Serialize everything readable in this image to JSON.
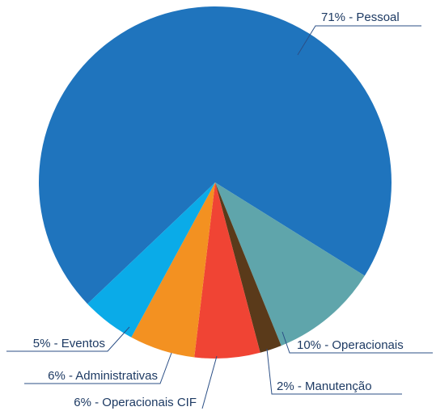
{
  "chart_data": {
    "type": "pie",
    "values": [
      71,
      10,
      2,
      6,
      6,
      5
    ],
    "value_labels": [
      "71% - Pessoal",
      "10% - Operacionais",
      "2% - Manutenção",
      "6% - Operacionais CIF",
      "6% - Administrativas",
      "5% - Eventos"
    ],
    "colors": [
      "#1f74bd",
      "#5fa5ab",
      "#5a3a1a",
      "#f04434",
      "#f39121",
      "#0aabe8"
    ]
  }
}
